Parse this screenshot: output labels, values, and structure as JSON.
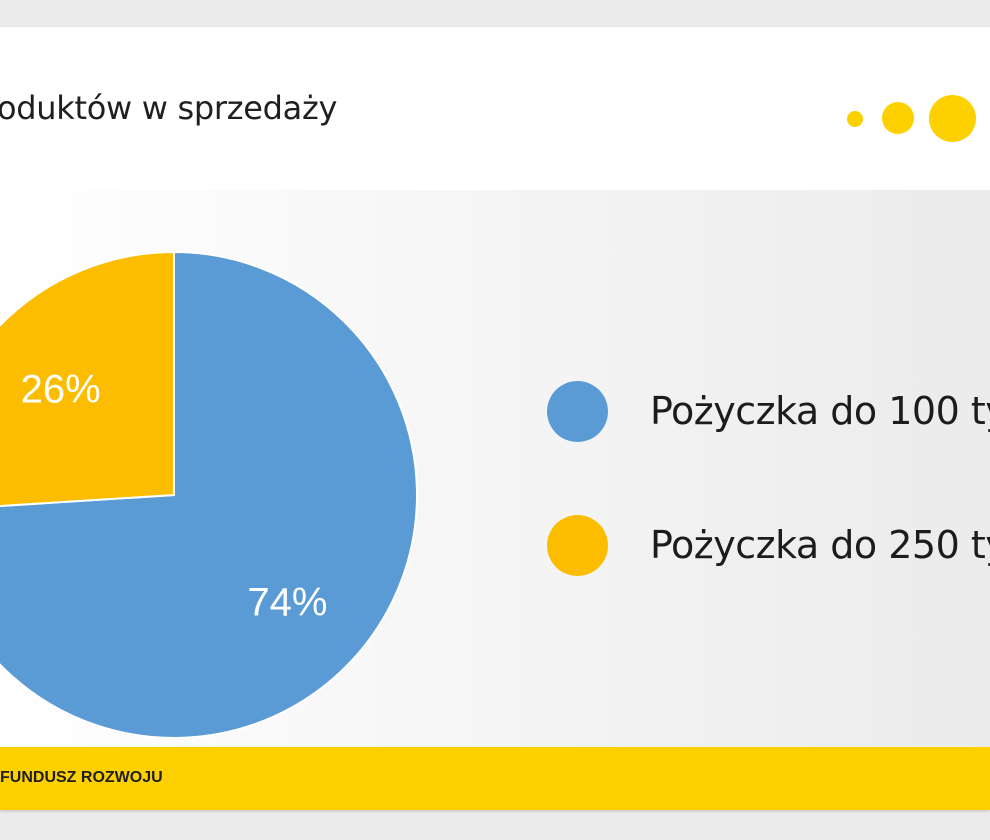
{
  "header": {
    "title": "oduktów w sprzedaży"
  },
  "colors": {
    "blue": "#5b9bd5",
    "yellow": "#fcbd00",
    "brand_yellow": "#fdd000"
  },
  "chart_data": {
    "type": "pie",
    "title": "",
    "categories": [
      "Pożyczka do 100 ty",
      "Pożyczka do 250 ty"
    ],
    "values": [
      74,
      26
    ],
    "labels": [
      "74%",
      "26%"
    ],
    "colors": [
      "#5b9bd5",
      "#fcbd00"
    ],
    "legend_position": "right"
  },
  "legend": [
    {
      "label": "Pożyczka do 100 ty"
    },
    {
      "label": "Pożyczka do 250 ty"
    }
  ],
  "footer": {
    "text": "FUNDUSZ ROZWOJU"
  }
}
